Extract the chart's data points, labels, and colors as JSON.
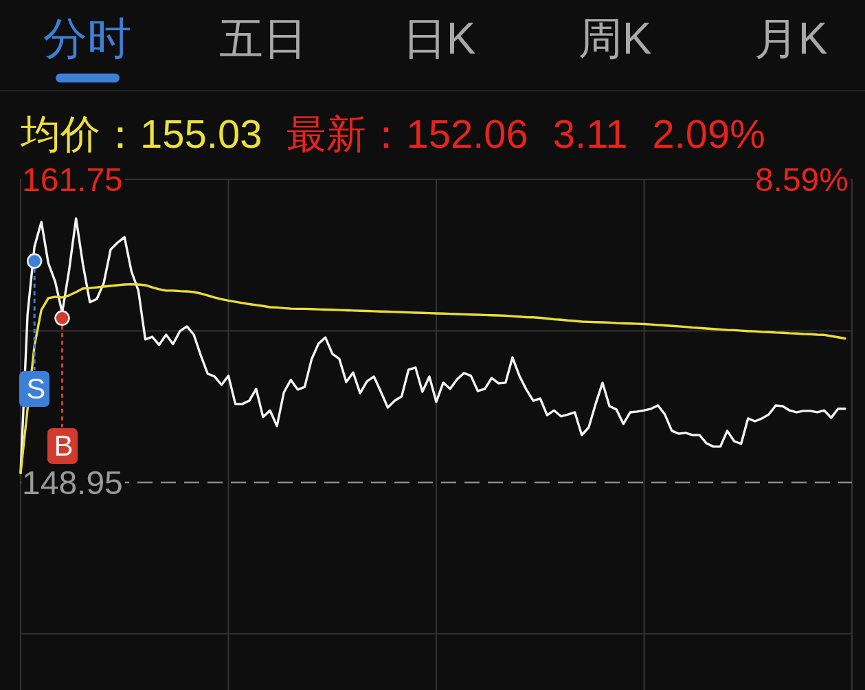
{
  "chart_data": [
    {
      "type": "other",
      "annotations": [
        "分时",
        "五日",
        "日K",
        "周K",
        "月K"
      ]
    },
    {
      "type": "other",
      "annotations": [
        "均价：155.03",
        "最新：152.06",
        "3.11",
        "2.09%"
      ]
    },
    {
      "type": "line",
      "annotations": [
        "8.59%"
      ],
      "categories": [
        null,
        null,
        null,
        null,
        null,
        null,
        null,
        null,
        null,
        null,
        null,
        null,
        null,
        null,
        null,
        null,
        null,
        null,
        null,
        null,
        null,
        null,
        null,
        null,
        null,
        null,
        null,
        null,
        null,
        null,
        null,
        null,
        null,
        null,
        null,
        null,
        null,
        null,
        null,
        null,
        null,
        null,
        null,
        null,
        null,
        null,
        null,
        null,
        null,
        null,
        null,
        null,
        null,
        null,
        null,
        null,
        null,
        null,
        null,
        null,
        null,
        null,
        null,
        null,
        null,
        null,
        null,
        null,
        null,
        null,
        null,
        null,
        null,
        null,
        null,
        null,
        null,
        null,
        null,
        null,
        null,
        null,
        null,
        null,
        null,
        null,
        null,
        null,
        null,
        null,
        null,
        null,
        null,
        null,
        null,
        null,
        null,
        null,
        null,
        null,
        null,
        null,
        null,
        null,
        null,
        null,
        null,
        null,
        null,
        null,
        null,
        null,
        null,
        null,
        null,
        null,
        null,
        null,
        null,
        null,
        null
      ],
      "series": [
        {
          "color": "#f4f4f4",
          "values": [
            149.35,
            156.03,
            158.91,
            159.95,
            158.21,
            157.42,
            156.12,
            157.91,
            160.1,
            158.15,
            156.56,
            156.7,
            157.37,
            158.79,
            159.08,
            159.31,
            157.86,
            157.05,
            154.99,
            155.1,
            154.76,
            155.19,
            154.79,
            155.34,
            155.54,
            155.19,
            154.32,
            153.54,
            153.42,
            153.07,
            153.45,
            152.26,
            152.26,
            152.4,
            152.9,
            151.71,
            151.99,
            151.33,
            152.75,
            153.28,
            152.87,
            152.98,
            154.15,
            154.81,
            155.07,
            154.38,
            154.17,
            153.19,
            153.59,
            152.72,
            153.22,
            153.42,
            152.78,
            152.11,
            152.4,
            152.58,
            153.71,
            153.8,
            152.78,
            153.42,
            152.35,
            153.16,
            152.9,
            153.3,
            153.57,
            153.45,
            152.81,
            152.9,
            153.36,
            153.13,
            153.16,
            154.23,
            153.45,
            152.87,
            152.4,
            152.49,
            151.79,
            151.99,
            151.74,
            151.82,
            151.91,
            150.95,
            151.27,
            152.26,
            153.16,
            152.17,
            152.03,
            151.42,
            151.91,
            151.94,
            151.99,
            152.06,
            152.2,
            151.82,
            151.13,
            151.01,
            151.04,
            150.95,
            150.95,
            150.6,
            150.46,
            150.46,
            151.13,
            150.69,
            150.58,
            151.65,
            151.53,
            151.65,
            151.82,
            152.2,
            152.17,
            151.99,
            151.91,
            151.97,
            151.97,
            151.91,
            151.99,
            151.68,
            152.06,
            152.06,
            null
          ]
        },
        {
          "color": "#e9dc38",
          "values": [
            149.35,
            null,
            154.73,
            156.24,
            156.73,
            156.79,
            156.76,
            156.85,
            156.99,
            157.14,
            157.16,
            157.19,
            157.22,
            157.25,
            157.28,
            157.31,
            157.32,
            157.31,
            157.28,
            157.19,
            157.11,
            157.05,
            157.05,
            157.03,
            157.02,
            156.99,
            156.93,
            156.85,
            156.76,
            156.69,
            156.63,
            156.58,
            156.53,
            156.48,
            156.44,
            156.4,
            156.35,
            156.34,
            156.31,
            156.29,
            156.28,
            156.28,
            156.27,
            156.26,
            156.25,
            156.24,
            156.23,
            156.22,
            156.21,
            156.2,
            156.19,
            156.18,
            156.17,
            156.16,
            156.15,
            156.14,
            156.13,
            156.12,
            156.11,
            156.1,
            156.09,
            156.08,
            156.07,
            156.06,
            156.05,
            156.04,
            156.03,
            156.02,
            156.01,
            156.0,
            155.99,
            155.97,
            155.95,
            155.93,
            155.92,
            155.9,
            155.87,
            155.84,
            155.82,
            155.79,
            155.77,
            155.74,
            155.73,
            155.72,
            155.71,
            155.7,
            155.68,
            155.67,
            155.66,
            155.65,
            155.64,
            155.62,
            155.6,
            155.58,
            155.56,
            155.54,
            155.52,
            155.49,
            155.47,
            155.45,
            155.43,
            155.41,
            155.39,
            155.38,
            155.36,
            155.34,
            155.33,
            155.31,
            155.3,
            155.28,
            155.27,
            155.25,
            155.24,
            155.22,
            155.21,
            155.19,
            155.18,
            155.13,
            155.08,
            155.03,
            null
          ]
        },
        {
          "name": "S",
          "type": "scatter",
          "color": "#3b7fd9",
          "values": [
            null,
            null,
            158.3,
            null,
            null,
            null,
            null,
            null,
            null,
            null,
            null,
            null,
            null,
            null,
            null,
            null,
            null,
            null,
            null,
            null,
            null,
            null,
            null,
            null,
            null,
            null,
            null,
            null,
            null,
            null,
            null,
            null,
            null,
            null,
            null,
            null,
            null,
            null,
            null,
            null,
            null,
            null,
            null,
            null,
            null,
            null,
            null,
            null,
            null,
            null,
            null,
            null,
            null,
            null,
            null,
            null,
            null,
            null,
            null,
            null,
            null,
            null,
            null,
            null,
            null,
            null,
            null,
            null,
            null,
            null,
            null,
            null,
            null,
            null,
            null,
            null,
            null,
            null,
            null,
            null,
            null,
            null,
            null,
            null,
            null,
            null,
            null,
            null,
            null,
            null,
            null,
            null,
            null,
            null,
            null,
            null,
            null,
            null,
            null,
            null,
            null,
            null,
            null,
            null,
            null,
            null,
            null,
            null,
            null,
            null,
            null,
            null,
            null,
            null,
            null,
            null,
            null,
            null,
            null,
            null,
            null
          ]
        },
        {
          "name": "B",
          "type": "scatter",
          "color": "#d23a2e",
          "values": [
            null,
            null,
            null,
            null,
            null,
            null,
            155.89,
            null,
            null,
            null,
            null,
            null,
            null,
            null,
            null,
            null,
            null,
            null,
            null,
            null,
            null,
            null,
            null,
            null,
            null,
            null,
            null,
            null,
            null,
            null,
            null,
            null,
            null,
            null,
            null,
            null,
            null,
            null,
            null,
            null,
            null,
            null,
            null,
            null,
            null,
            null,
            null,
            null,
            null,
            null,
            null,
            null,
            null,
            null,
            null,
            null,
            null,
            null,
            null,
            null,
            null,
            null,
            null,
            null,
            null,
            null,
            null,
            null,
            null,
            null,
            null,
            null,
            null,
            null,
            null,
            null,
            null,
            null,
            null,
            null,
            null,
            null,
            null,
            null,
            null,
            null,
            null,
            null,
            null,
            null,
            null,
            null,
            null,
            null,
            null,
            null,
            null,
            null,
            null,
            null,
            null,
            null,
            null,
            null,
            null,
            null,
            null,
            null,
            null,
            null,
            null,
            null,
            null,
            null,
            null,
            null,
            null,
            null,
            null,
            null,
            null
          ]
        }
      ],
      "ylim": [
        140.18,
        161.75
      ],
      "yticks": [
        {
          "value": 161.75,
          "label": "161.75"
        },
        {
          "value": 155.35,
          "label": null
        },
        {
          "value": 148.95,
          "label": "148.95"
        },
        {
          "value": 142.55,
          "label": null
        }
      ],
      "ref_lines": [
        {
          "axis": "y",
          "value": 148.95,
          "line_style": "dashed",
          "color": "#8a8a8a"
        }
      ],
      "grid": true,
      "legend": "left"
    }
  ]
}
